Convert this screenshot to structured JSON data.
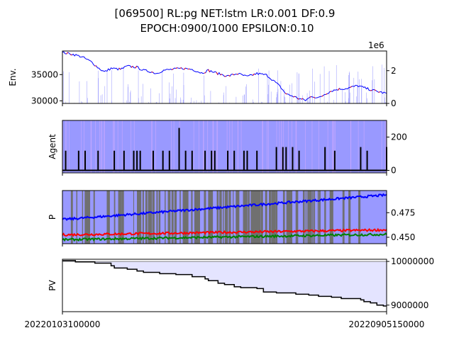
{
  "title": {
    "line1": "[069500] RL:pg NET:lstm LR:0.001 DF:0.9",
    "line2": "EPOCH:0900/1000 EPSILON:0.10"
  },
  "x_labels": [
    "20220103100000",
    "20220905150000"
  ],
  "chart_data": [
    {
      "type": "line",
      "name": "env-panel",
      "ylabel": "Env.",
      "y_ticks_left": [
        "30000",
        "35000"
      ],
      "y_ticks_right": [
        "0",
        "2"
      ],
      "y_right_offset_label": "1e6",
      "ylim_left": [
        29500,
        39500
      ],
      "ylim_right": [
        0,
        3200000
      ],
      "overlay": "volume bars (right axis), price line blue with red segments",
      "price_profile": [
        [
          0.0,
          39200
        ],
        [
          0.03,
          38900
        ],
        [
          0.06,
          38400
        ],
        [
          0.09,
          37400
        ],
        [
          0.11,
          36300
        ],
        [
          0.13,
          35500
        ],
        [
          0.15,
          36200
        ],
        [
          0.18,
          36000
        ],
        [
          0.2,
          36600
        ],
        [
          0.23,
          36400
        ],
        [
          0.25,
          35800
        ],
        [
          0.27,
          35600
        ],
        [
          0.29,
          35200
        ],
        [
          0.31,
          35800
        ],
        [
          0.34,
          36000
        ],
        [
          0.37,
          36200
        ],
        [
          0.4,
          36000
        ],
        [
          0.43,
          35300
        ],
        [
          0.45,
          35800
        ],
        [
          0.48,
          35200
        ],
        [
          0.51,
          34700
        ],
        [
          0.54,
          35200
        ],
        [
          0.57,
          34600
        ],
        [
          0.6,
          35200
        ],
        [
          0.63,
          34900
        ],
        [
          0.65,
          33900
        ],
        [
          0.67,
          32800
        ],
        [
          0.69,
          31300
        ],
        [
          0.71,
          30900
        ],
        [
          0.73,
          30400
        ],
        [
          0.75,
          30100
        ],
        [
          0.77,
          30900
        ],
        [
          0.79,
          30500
        ],
        [
          0.81,
          31300
        ],
        [
          0.83,
          31900
        ],
        [
          0.85,
          32200
        ],
        [
          0.88,
          32400
        ],
        [
          0.91,
          32900
        ],
        [
          0.94,
          32300
        ],
        [
          0.97,
          31800
        ],
        [
          1.0,
          31400
        ]
      ]
    },
    {
      "type": "bar",
      "name": "agent-panel",
      "ylabel": "Agent",
      "y_ticks_right": [
        "0",
        "200"
      ],
      "ylim": [
        -15,
        300
      ],
      "background": "blue action bands",
      "positions": [
        0.01,
        0.05,
        0.07,
        0.11,
        0.16,
        0.19,
        0.22,
        0.23,
        0.24,
        0.28,
        0.31,
        0.33,
        0.36,
        0.38,
        0.4,
        0.44,
        0.46,
        0.47,
        0.51,
        0.53,
        0.56,
        0.57,
        0.6,
        0.66,
        0.68,
        0.69,
        0.71,
        0.73,
        0.81,
        0.84,
        0.92,
        0.94,
        1.0
      ],
      "values": [
        118,
        118,
        118,
        118,
        118,
        118,
        118,
        118,
        118,
        118,
        118,
        118,
        255,
        118,
        118,
        118,
        118,
        118,
        118,
        118,
        118,
        118,
        118,
        140,
        140,
        140,
        140,
        118,
        140,
        118,
        140,
        118,
        140
      ]
    },
    {
      "type": "line",
      "name": "policy-panel",
      "ylabel": "P",
      "y_ticks_right": [
        "0.450",
        "0.475"
      ],
      "ylim": [
        0.4435,
        0.4975
      ],
      "background": "blue with gray exploration bands",
      "series": [
        {
          "color": "#0000ff",
          "start": 0.468,
          "end": 0.493
        },
        {
          "color": "#ff0000",
          "start": 0.4525,
          "end": 0.4575
        },
        {
          "color": "#008000",
          "start": 0.4475,
          "end": 0.453
        }
      ]
    },
    {
      "type": "line",
      "name": "pv-panel",
      "ylabel": "PV",
      "y_ticks_right": [
        "9000000",
        "10000000"
      ],
      "ylim": [
        8850000,
        10050000
      ],
      "baseline": 10000000,
      "steps": [
        [
          0.0,
          10020000
        ],
        [
          0.04,
          9990000
        ],
        [
          0.1,
          9960000
        ],
        [
          0.15,
          9900000
        ],
        [
          0.16,
          9850000
        ],
        [
          0.2,
          9820000
        ],
        [
          0.23,
          9780000
        ],
        [
          0.25,
          9750000
        ],
        [
          0.3,
          9720000
        ],
        [
          0.35,
          9700000
        ],
        [
          0.4,
          9650000
        ],
        [
          0.44,
          9600000
        ],
        [
          0.45,
          9560000
        ],
        [
          0.48,
          9500000
        ],
        [
          0.5,
          9470000
        ],
        [
          0.53,
          9420000
        ],
        [
          0.55,
          9400000
        ],
        [
          0.6,
          9380000
        ],
        [
          0.62,
          9300000
        ],
        [
          0.66,
          9280000
        ],
        [
          0.72,
          9250000
        ],
        [
          0.76,
          9230000
        ],
        [
          0.79,
          9200000
        ],
        [
          0.83,
          9180000
        ],
        [
          0.86,
          9150000
        ],
        [
          0.92,
          9120000
        ],
        [
          0.93,
          9080000
        ],
        [
          0.95,
          9050000
        ],
        [
          0.97,
          9000000
        ],
        [
          0.99,
          8980000
        ],
        [
          1.0,
          8980000
        ]
      ]
    }
  ]
}
